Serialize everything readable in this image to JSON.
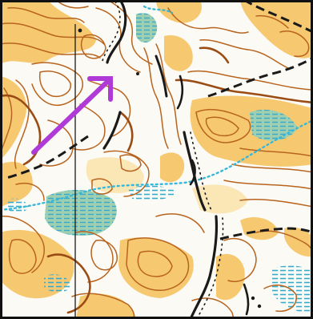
{
  "map": {
    "kind": "orienteering-map",
    "colors": {
      "paper": "#fbfaf4",
      "open_land": "#f4b846",
      "rough_open": "#fbd98c",
      "contour": "#b8641f",
      "index_contour": "#9a4c14",
      "cliff": "#1a1a1a",
      "track": "#1a1a1a",
      "water": "#38b8d8",
      "marsh": "#3aa8c8",
      "vegetation": "#8cc4a2",
      "north_line": "#1a1a1a",
      "course_arrow": "#b03ad8",
      "frame": "#111111"
    },
    "features": {
      "course_arrow": "direction-arrow",
      "north_line": "magnetic-north-line",
      "track": "dashed-path",
      "stream": "dotted-stream",
      "cliffs": "rock-cliffs",
      "marsh": "marsh-hatching"
    }
  }
}
